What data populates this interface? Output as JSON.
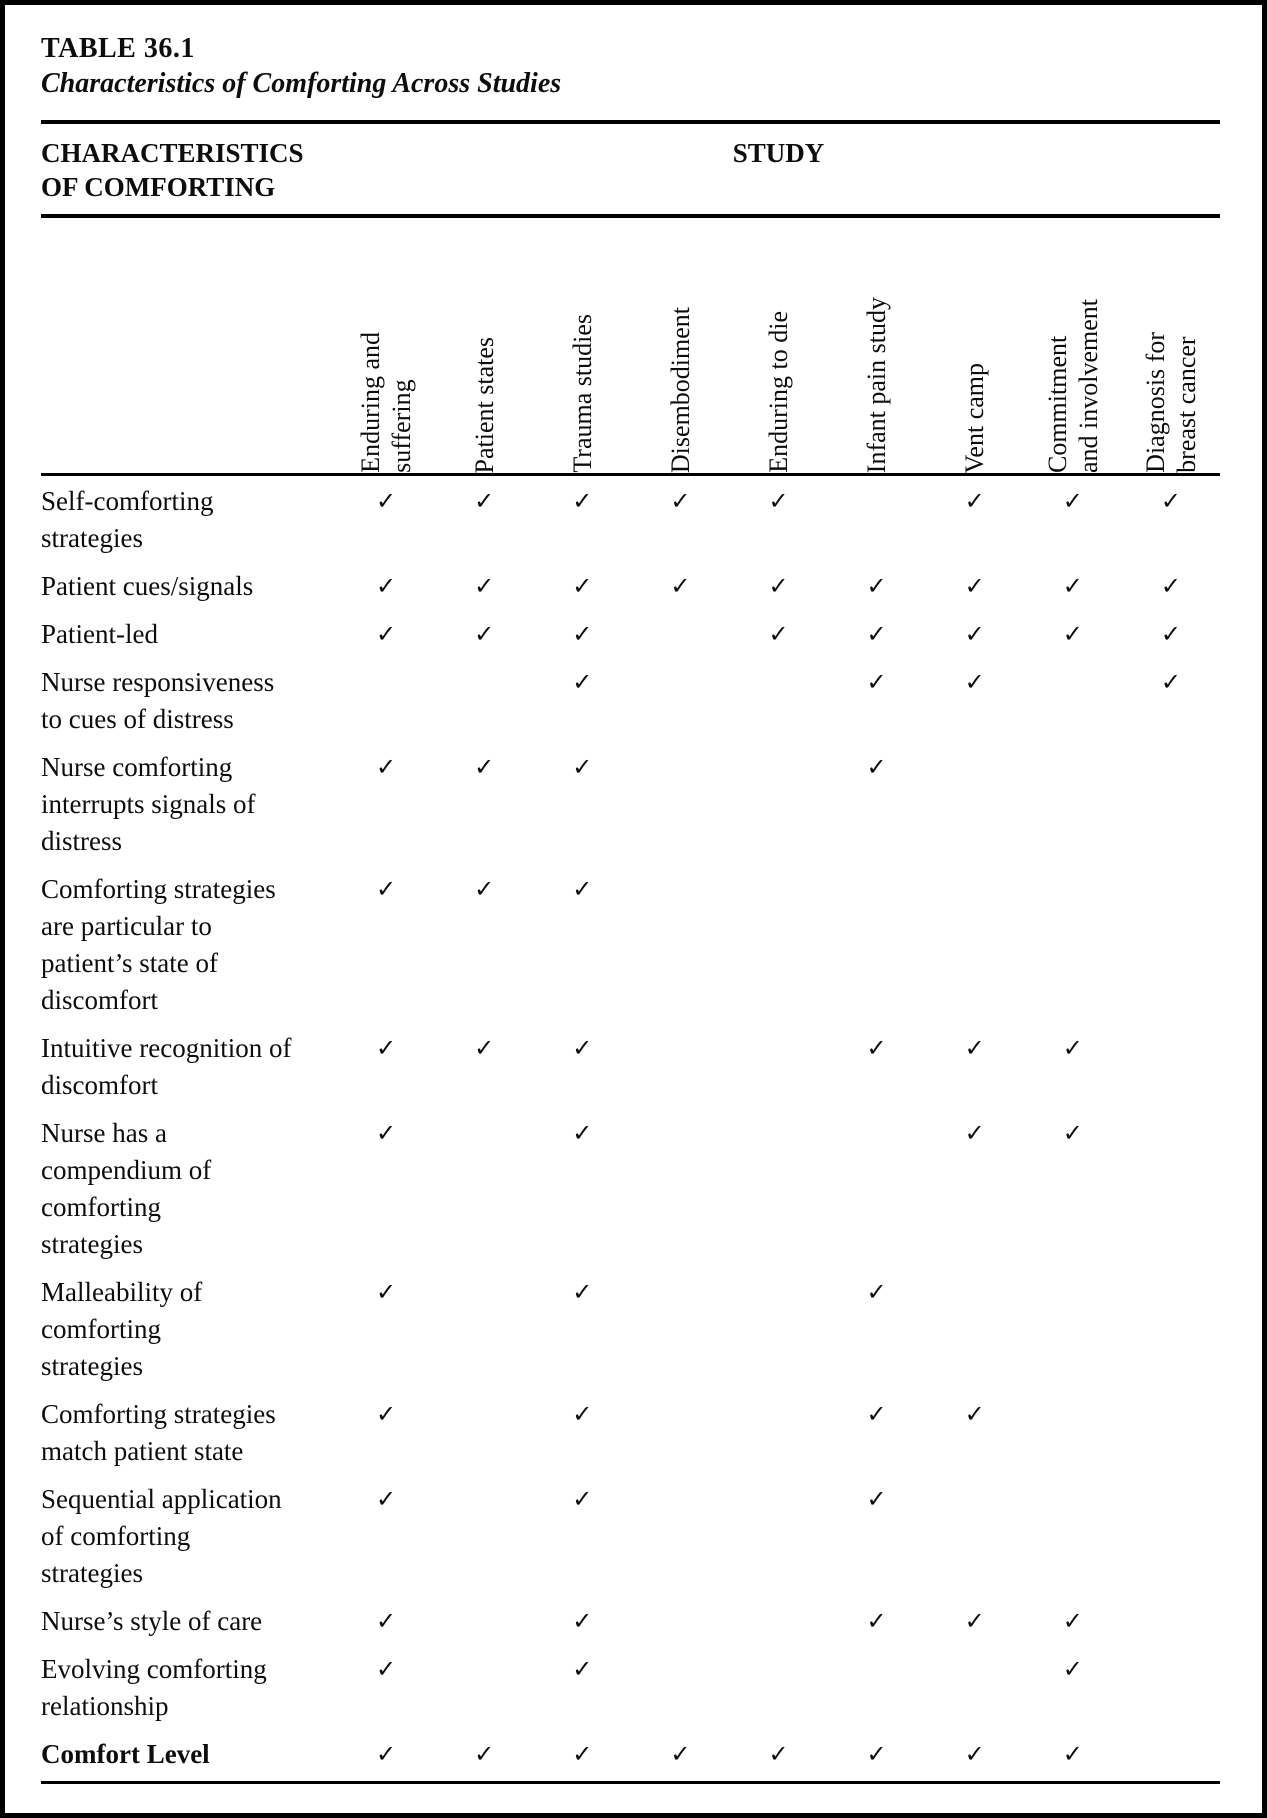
{
  "page": {
    "table_label": "TABLE 36.1",
    "table_title": "Characteristics of Comforting Across Studies"
  },
  "header": {
    "row_header": "CHARACTERISTICS OF COMFORTING",
    "row_header_lines": [
      "CHARACTERISTICS",
      "OF COMFORTING"
    ],
    "col_group_header": "STUDY"
  },
  "check_symbol": "✓",
  "studies": [
    {
      "label": "Enduring and suffering",
      "lines": [
        "Enduring and",
        "suffering"
      ]
    },
    {
      "label": "Patient states",
      "lines": [
        "Patient states"
      ]
    },
    {
      "label": "Trauma studies",
      "lines": [
        "Trauma studies"
      ]
    },
    {
      "label": "Disembodiment",
      "lines": [
        "Disembodiment"
      ]
    },
    {
      "label": "Enduring to die",
      "lines": [
        "Enduring to die"
      ]
    },
    {
      "label": "Infant pain study",
      "lines": [
        "Infant pain study"
      ]
    },
    {
      "label": "Vent camp",
      "lines": [
        "Vent camp"
      ]
    },
    {
      "label": "Commitment and involvement",
      "lines": [
        "Commitment",
        "and involvement"
      ]
    },
    {
      "label": "Diagnosis for breast cancer",
      "lines": [
        "Diagnosis for",
        "breast cancer"
      ]
    }
  ],
  "rows": [
    {
      "label": "Self-comforting strategies",
      "lines": [
        "Self-comforting",
        "strategies"
      ],
      "bold": false,
      "checks": [
        1,
        1,
        1,
        1,
        1,
        0,
        1,
        1,
        1
      ]
    },
    {
      "label": "Patient cues/signals",
      "lines": [
        "Patient cues/signals"
      ],
      "bold": false,
      "checks": [
        1,
        1,
        1,
        1,
        1,
        1,
        1,
        1,
        1
      ]
    },
    {
      "label": "Patient-led",
      "lines": [
        "Patient-led"
      ],
      "bold": false,
      "checks": [
        1,
        1,
        1,
        0,
        1,
        1,
        1,
        1,
        1
      ]
    },
    {
      "label": "Nurse responsiveness to cues of distress",
      "lines": [
        "Nurse responsiveness",
        "to cues of distress"
      ],
      "bold": false,
      "checks": [
        0,
        0,
        1,
        0,
        0,
        1,
        1,
        0,
        1
      ]
    },
    {
      "label": "Nurse comforting interrupts signals of distress",
      "lines": [
        "Nurse comforting",
        "interrupts signals of",
        "distress"
      ],
      "bold": false,
      "checks": [
        1,
        1,
        1,
        0,
        0,
        1,
        0,
        0,
        0
      ]
    },
    {
      "label": "Comforting strategies are particular to patient’s state of discomfort",
      "lines": [
        "Comforting strategies",
        "are particular to",
        "patient’s state of",
        "discomfort"
      ],
      "bold": false,
      "checks": [
        1,
        1,
        1,
        0,
        0,
        0,
        0,
        0,
        0
      ]
    },
    {
      "label": "Intuitive recognition of discomfort",
      "lines": [
        "Intuitive recognition of",
        "discomfort"
      ],
      "bold": false,
      "checks": [
        1,
        1,
        1,
        0,
        0,
        1,
        1,
        1,
        0
      ]
    },
    {
      "label": "Nurse has a compendium of comforting strategies",
      "lines": [
        "Nurse has a",
        "compendium of",
        "comforting",
        "strategies"
      ],
      "bold": false,
      "checks": [
        1,
        0,
        1,
        0,
        0,
        0,
        1,
        1,
        0
      ]
    },
    {
      "label": "Malleability of comforting strategies",
      "lines": [
        "Malleability of",
        "comforting",
        "strategies"
      ],
      "bold": false,
      "checks": [
        1,
        0,
        1,
        0,
        0,
        1,
        0,
        0,
        0
      ]
    },
    {
      "label": "Comforting strategies match patient state",
      "lines": [
        "Comforting strategies",
        "match patient state"
      ],
      "bold": false,
      "checks": [
        1,
        0,
        1,
        0,
        0,
        1,
        1,
        0,
        0
      ]
    },
    {
      "label": "Sequential application of comforting strategies",
      "lines": [
        "Sequential application",
        "of comforting",
        "strategies"
      ],
      "bold": false,
      "checks": [
        1,
        0,
        1,
        0,
        0,
        1,
        0,
        0,
        0
      ]
    },
    {
      "label": "Nurse’s style of care",
      "lines": [
        "Nurse’s style of care"
      ],
      "bold": false,
      "checks": [
        1,
        0,
        1,
        0,
        0,
        1,
        1,
        1,
        0
      ]
    },
    {
      "label": "Evolving comforting relationship",
      "lines": [
        "Evolving comforting",
        "relationship"
      ],
      "bold": false,
      "checks": [
        1,
        0,
        1,
        0,
        0,
        0,
        0,
        1,
        0
      ]
    },
    {
      "label": "Comfort Level",
      "lines": [
        "Comfort Level"
      ],
      "bold": true,
      "checks": [
        1,
        1,
        1,
        1,
        1,
        1,
        1,
        1,
        0
      ]
    }
  ]
}
